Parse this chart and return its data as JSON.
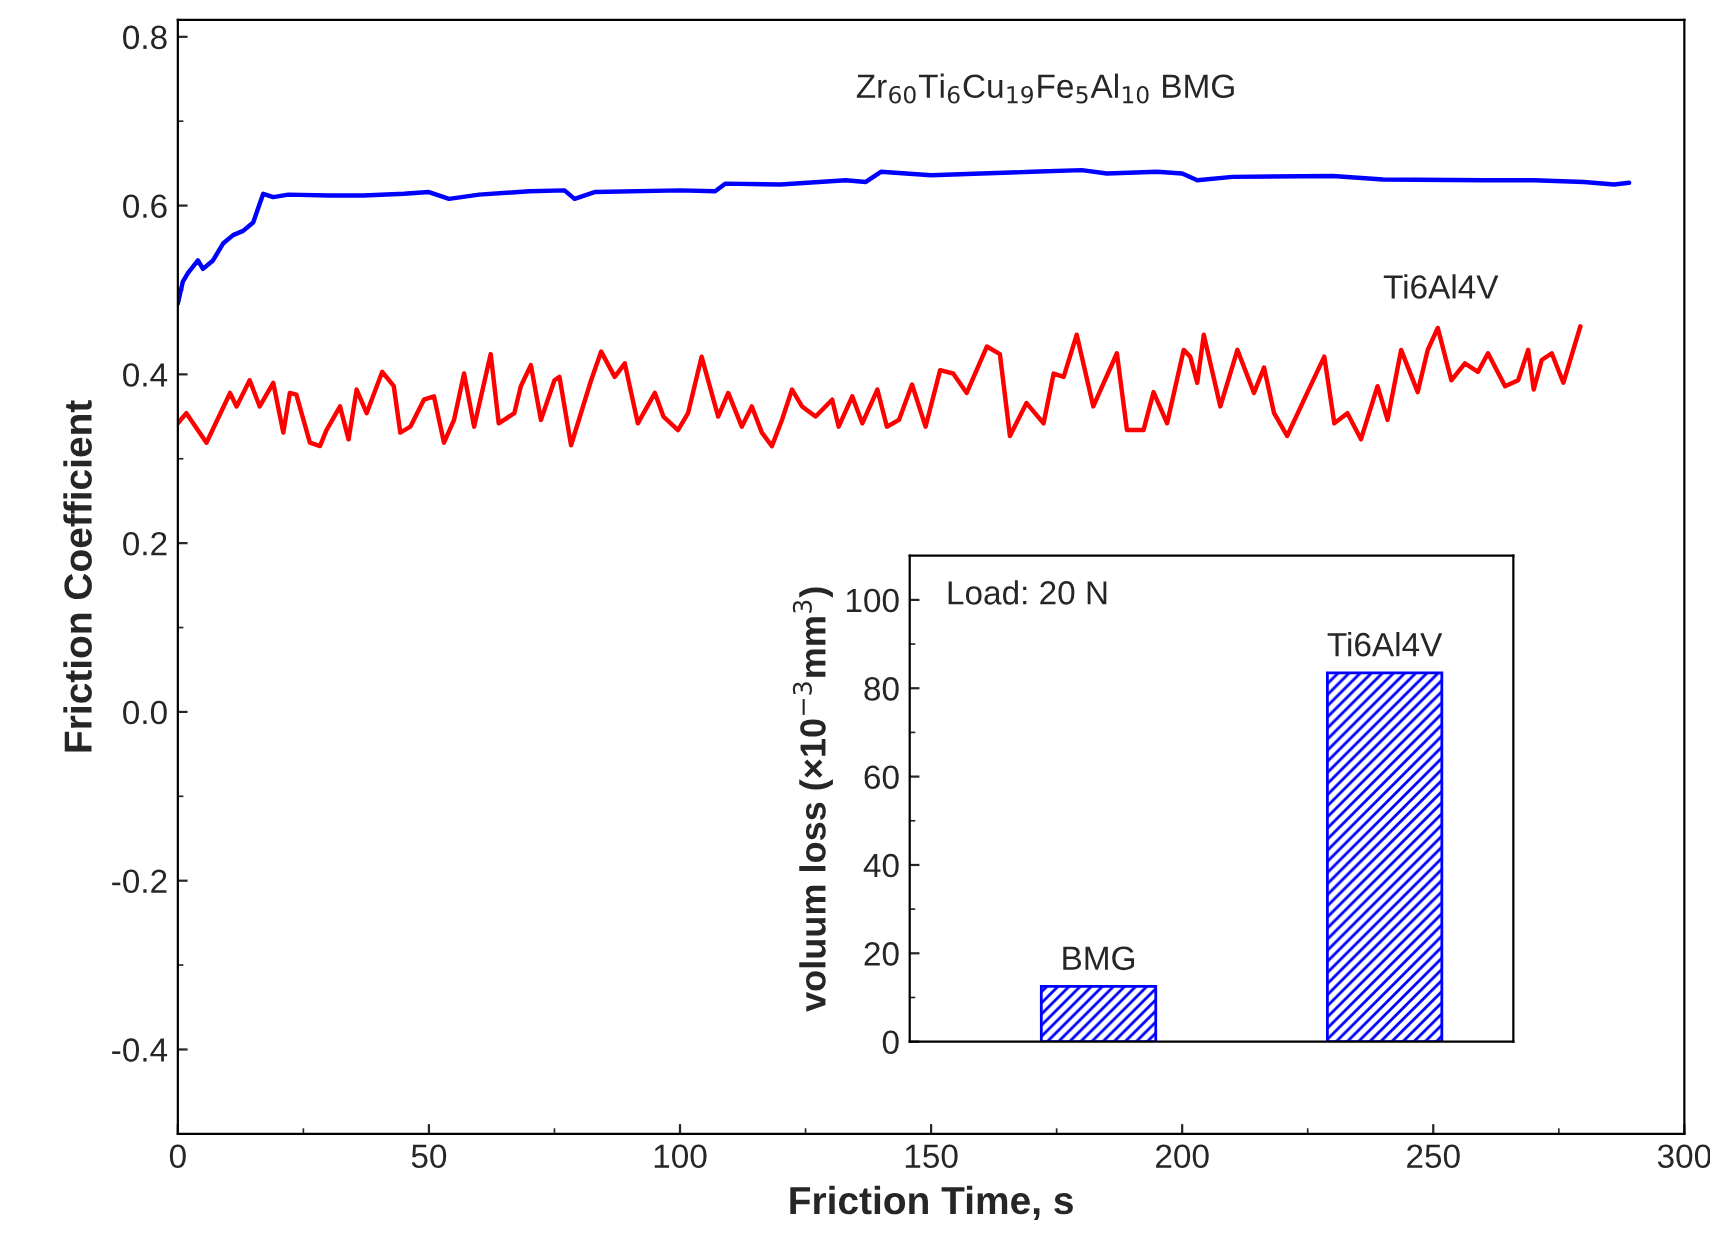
{
  "chart_data": [
    {
      "type": "line",
      "xlabel": "Friction Time, s",
      "ylabel": "Friction Coefficient",
      "xlim": [
        0,
        300
      ],
      "xticks": [
        0,
        50,
        100,
        150,
        200,
        250,
        300
      ],
      "ylim": [
        -0.5,
        0.82
      ],
      "yticks": [
        -0.4,
        -0.2,
        {
          "value": 0,
          "label": "0.0"
        },
        0.2,
        0.4,
        0.6,
        0.8
      ],
      "grid": false,
      "legend": false,
      "marker": "none",
      "line_style": "solid",
      "series": [
        {
          "name": "Zr$_{60}$Ti$_{6}$Cu$_{19}$Fe$_{5}$Al$_{10}$ BMG",
          "color": "#0000ff",
          "x": [
            0,
            1,
            2,
            4,
            5,
            7,
            9,
            11,
            13,
            15,
            17,
            19,
            22,
            30,
            37,
            45,
            50,
            54,
            60,
            70,
            77,
            79,
            83,
            100,
            107,
            109,
            120,
            133,
            137,
            140,
            150,
            160,
            170,
            180,
            185,
            195,
            200,
            203,
            210,
            230,
            240,
            260,
            270,
            280,
            286,
            289
          ],
          "values": [
            0.484,
            0.51,
            0.52,
            0.535,
            0.525,
            0.535,
            0.555,
            0.565,
            0.57,
            0.58,
            0.614,
            0.61,
            0.613,
            0.612,
            0.612,
            0.614,
            0.616,
            0.608,
            0.613,
            0.617,
            0.618,
            0.608,
            0.616,
            0.618,
            0.617,
            0.626,
            0.625,
            0.63,
            0.628,
            0.64,
            0.636,
            0.638,
            0.64,
            0.642,
            0.638,
            0.64,
            0.638,
            0.63,
            0.634,
            0.635,
            0.631,
            0.63,
            0.63,
            0.628,
            0.625,
            0.627
          ]
        },
        {
          "name": "Ti6Al4V",
          "color": "#ff0000",
          "x": [
            0,
            1.7,
            5.7,
            10.4,
            11.7,
            14.3,
            16.3,
            19,
            21,
            22.3,
            23.6,
            26.3,
            28.3,
            29.6,
            32.3,
            34,
            35.6,
            37.6,
            40.7,
            43,
            44.3,
            46.3,
            49,
            51,
            53,
            55,
            57,
            59,
            62.3,
            63.9,
            67,
            68.3,
            70.3,
            72.3,
            75,
            76,
            78.3,
            82.3,
            84.3,
            87,
            89,
            91.6,
            95,
            96.7,
            99.6,
            101.6,
            104.3,
            107.6,
            109.6,
            112.3,
            114.3,
            116.3,
            118.3,
            120.3,
            122.3,
            124.3,
            127,
            130.3,
            131.6,
            134.3,
            136.3,
            139.3,
            141.2,
            143.6,
            146.2,
            148.9,
            151.8,
            154.4,
            157.1,
            161.1,
            163.7,
            165.7,
            169,
            172.4,
            174.4,
            176.4,
            179,
            182.3,
            187,
            189,
            192.3,
            194.3,
            197,
            200.3,
            201.6,
            203,
            204.3,
            207.6,
            211,
            214.3,
            216.3,
            218.3,
            220.9,
            224.9,
            228.3,
            230.3,
            232.9,
            235.6,
            238.9,
            240.9,
            243.6,
            246.9,
            248.9,
            250.9,
            253.6,
            256.3,
            258.9,
            260.9,
            264.3,
            266.9,
            268.9,
            270,
            271.6,
            273.6,
            275.9,
            279.3
          ],
          "values": [
            0.342,
            0.354,
            0.319,
            0.378,
            0.362,
            0.393,
            0.362,
            0.39,
            0.331,
            0.378,
            0.376,
            0.319,
            0.315,
            0.334,
            0.362,
            0.323,
            0.382,
            0.354,
            0.403,
            0.386,
            0.331,
            0.338,
            0.37,
            0.374,
            0.319,
            0.346,
            0.401,
            0.338,
            0.424,
            0.342,
            0.354,
            0.386,
            0.411,
            0.346,
            0.393,
            0.397,
            0.316,
            0.393,
            0.427,
            0.397,
            0.413,
            0.342,
            0.378,
            0.35,
            0.334,
            0.354,
            0.421,
            0.35,
            0.378,
            0.338,
            0.362,
            0.331,
            0.315,
            0.346,
            0.382,
            0.362,
            0.35,
            0.37,
            0.338,
            0.374,
            0.342,
            0.382,
            0.338,
            0.346,
            0.388,
            0.338,
            0.405,
            0.401,
            0.378,
            0.433,
            0.424,
            0.327,
            0.366,
            0.342,
            0.401,
            0.397,
            0.447,
            0.362,
            0.425,
            0.334,
            0.334,
            0.379,
            0.342,
            0.429,
            0.421,
            0.39,
            0.447,
            0.362,
            0.429,
            0.378,
            0.408,
            0.354,
            0.327,
            0.378,
            0.421,
            0.342,
            0.354,
            0.323,
            0.386,
            0.346,
            0.429,
            0.379,
            0.429,
            0.455,
            0.393,
            0.413,
            0.403,
            0.425,
            0.386,
            0.393,
            0.429,
            0.382,
            0.417,
            0.425,
            0.39,
            0.457
          ]
        }
      ]
    },
    {
      "type": "bar",
      "ylabel": "voluum loss (×10$^{−3}$mm$^{3}$)",
      "categories": [
        "BMG",
        "Ti6Al4V"
      ],
      "values": [
        12.5,
        83.5
      ],
      "color": "#0000ff",
      "ylim": [
        0,
        110
      ],
      "yticks": [
        0,
        20,
        40,
        60,
        80,
        100
      ],
      "tick_labels": "y",
      "grid": false,
      "annotations": [
        "Load: 20 N"
      ]
    }
  ]
}
